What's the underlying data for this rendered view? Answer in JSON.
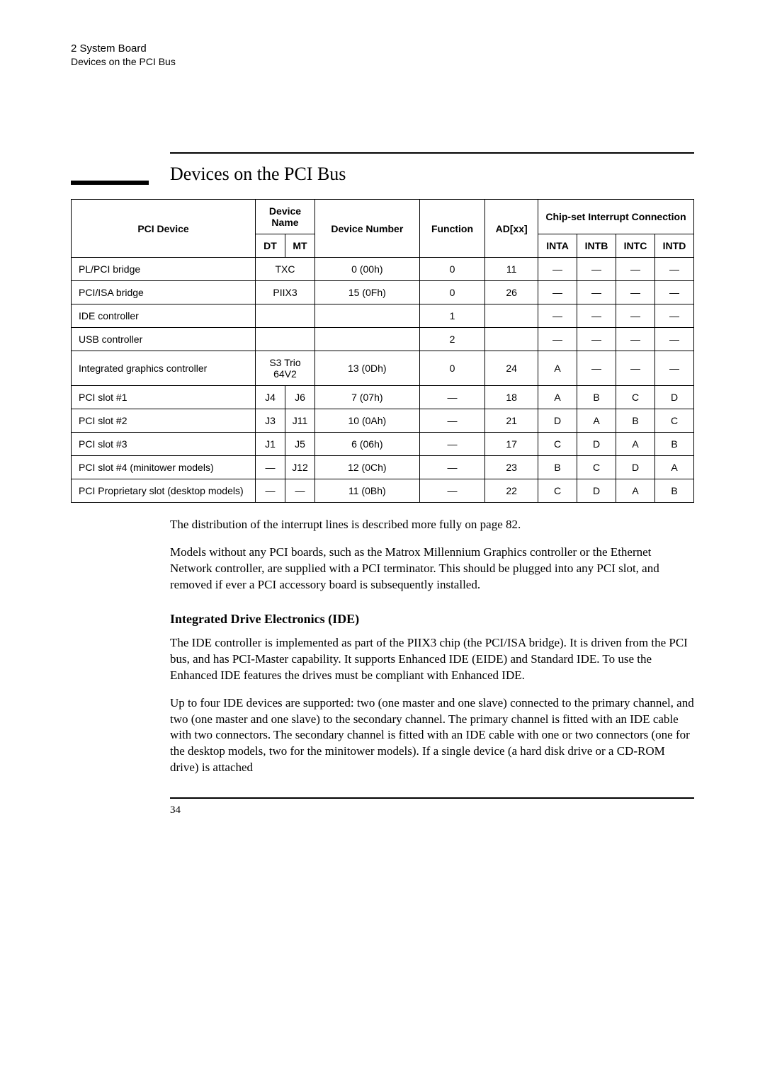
{
  "header": {
    "chapter": "2  System Board",
    "section": "Devices on the PCI Bus"
  },
  "section_title": "Devices on the PCI Bus",
  "table": {
    "header": {
      "pci_device": "PCI Device",
      "device_name": "Device Name",
      "dt": "DT",
      "mt": "MT",
      "device_number": "Device Number",
      "function": "Function",
      "adxx": "AD[xx]",
      "chipset": "Chip-set Interrupt Connection",
      "inta": "INTA",
      "intb": "INTB",
      "intc": "INTC",
      "intd": "INTD"
    },
    "rows": [
      {
        "device": "PL/PCI bridge",
        "dt": "TXC",
        "mt": "",
        "dtmt_span": true,
        "num": "0 (00h)",
        "func": "0",
        "ad": "11",
        "a": "—",
        "b": "—",
        "c": "—",
        "d": "—"
      },
      {
        "device": "PCI/ISA bridge",
        "dt": "PIIX3",
        "mt": "",
        "dtmt_span": true,
        "num": "15 (0Fh)",
        "func": "0",
        "ad": "26",
        "a": "—",
        "b": "—",
        "c": "—",
        "d": "—"
      },
      {
        "device": "IDE controller",
        "dt": "",
        "mt": "",
        "dtmt_span": true,
        "num": "",
        "func": "1",
        "ad": "",
        "a": "—",
        "b": "—",
        "c": "—",
        "d": "—"
      },
      {
        "device": "USB controller",
        "dt": "",
        "mt": "",
        "dtmt_span": true,
        "num": "",
        "func": "2",
        "ad": "",
        "a": "—",
        "b": "—",
        "c": "—",
        "d": "—"
      },
      {
        "device": "Integrated graphics controller",
        "dt": "S3 Trio 64V2",
        "mt": "",
        "dtmt_span": true,
        "num": "13 (0Dh)",
        "func": "0",
        "ad": "24",
        "a": "A",
        "b": "—",
        "c": "—",
        "d": "—"
      },
      {
        "device": "PCI slot #1",
        "dt": "J4",
        "mt": "J6",
        "dtmt_span": false,
        "num": "7 (07h)",
        "func": "—",
        "ad": "18",
        "a": "A",
        "b": "B",
        "c": "C",
        "d": "D"
      },
      {
        "device": "PCI slot #2",
        "dt": "J3",
        "mt": "J11",
        "dtmt_span": false,
        "num": "10 (0Ah)",
        "func": "—",
        "ad": "21",
        "a": "D",
        "b": "A",
        "c": "B",
        "d": "C"
      },
      {
        "device": "PCI slot #3",
        "dt": "J1",
        "mt": "J5",
        "dtmt_span": false,
        "num": "6 (06h)",
        "func": "—",
        "ad": "17",
        "a": "C",
        "b": "D",
        "c": "A",
        "d": "B"
      },
      {
        "device": "PCI slot #4 (minitower models)",
        "dt": "—",
        "mt": "J12",
        "dtmt_span": false,
        "num": "12 (0Ch)",
        "func": "—",
        "ad": "23",
        "a": "B",
        "b": "C",
        "c": "D",
        "d": "A"
      },
      {
        "device": "PCI Proprietary slot (desktop models)",
        "dt": "—",
        "mt": "—",
        "dtmt_span": false,
        "num": "11 (0Bh)",
        "func": "—",
        "ad": "22",
        "a": "C",
        "b": "D",
        "c": "A",
        "d": "B"
      }
    ]
  },
  "para1": "The distribution of the interrupt lines is described more fully on page 82.",
  "para2": "Models without any PCI boards, such as the Matrox Millennium Graphics controller or the Ethernet Network controller, are supplied with a PCI terminator. This should be plugged into any PCI slot, and removed if ever a PCI accessory board is subsequently installed.",
  "subsection": "Integrated Drive Electronics (IDE)",
  "para3": "The IDE controller is implemented as part of the PIIX3 chip (the PCI/ISA bridge). It is driven from the PCI bus, and has PCI-Master capability. It supports Enhanced IDE (EIDE) and Standard IDE. To use the Enhanced IDE features the drives must be compliant with Enhanced IDE.",
  "para4": "Up to four IDE devices are supported: two (one master and one slave) connected to the primary channel, and two (one master and one slave) to the secondary channel. The primary channel is fitted with an IDE cable with two connectors. The secondary channel is fitted with an IDE cable with one or two connectors (one for the desktop models, two for the minitower models). If a single device (a hard disk drive or a CD-ROM drive) is attached",
  "page_number": "34"
}
